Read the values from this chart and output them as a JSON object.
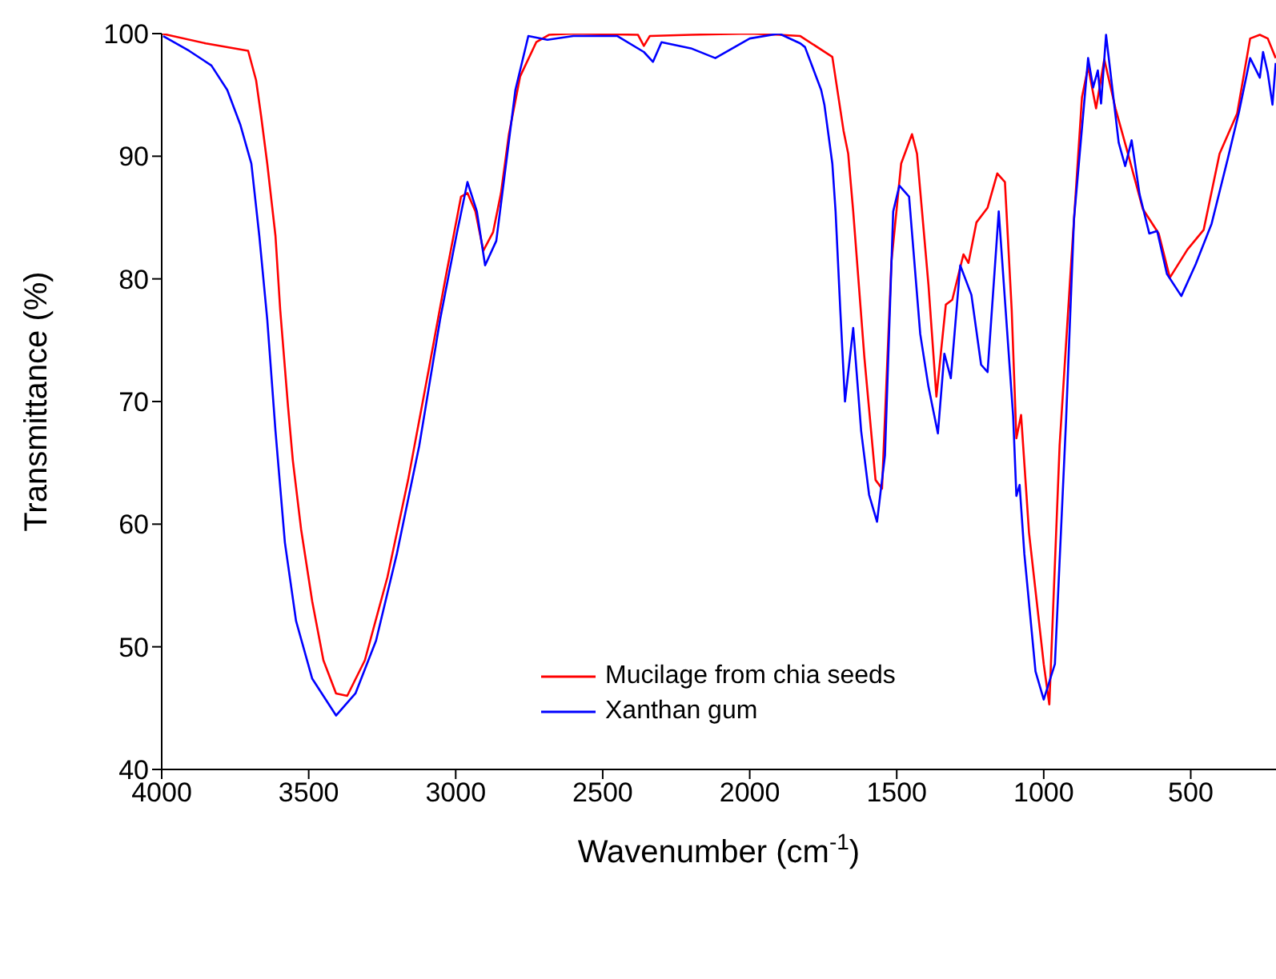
{
  "chart_data": {
    "type": "line",
    "xlabel": "Wavenumber (cm$^{-1}$)",
    "ylabel": "Transmittance (%)",
    "xlim": [
      4000,
      210
    ],
    "xticks": [
      4000,
      3500,
      3000,
      2500,
      2000,
      1500,
      1000,
      500
    ],
    "ylim": [
      40,
      100
    ],
    "yticks": [
      40,
      50,
      60,
      70,
      80,
      90,
      100
    ],
    "grid": false,
    "legend": "bottom",
    "marker": "none",
    "line_style": "solid",
    "series": [
      {
        "name": "Mucilage from chia seeds",
        "color": "#ff0000",
        "x": [
          4000,
          3850,
          3706,
          3679,
          3662,
          3641,
          3613,
          3597,
          3570,
          3554,
          3526,
          3488,
          3450,
          3407,
          3369,
          3309,
          3232,
          3162,
          3091,
          3036,
          2982,
          2960,
          2933,
          2906,
          2873,
          2846,
          2819,
          2781,
          2726,
          2683,
          2600,
          2380,
          2360,
          2340,
          2200,
          2000,
          1900,
          1828,
          1719,
          1681,
          1665,
          1648,
          1610,
          1572,
          1550,
          1518,
          1485,
          1448,
          1431,
          1392,
          1365,
          1333,
          1311,
          1273,
          1256,
          1229,
          1191,
          1158,
          1132,
          1109,
          1093,
          1077,
          1050,
          1000,
          981,
          946,
          908,
          870,
          849,
          822,
          794,
          756,
          718,
          663,
          609,
          571,
          511,
          456,
          402,
          342,
          298,
          265,
          238,
          211
        ],
        "values": [
          100,
          99.2,
          98.6,
          96.2,
          93.3,
          89.4,
          83.5,
          77.5,
          69.5,
          65.2,
          59.6,
          53.7,
          48.9,
          46.2,
          46,
          48.9,
          55.7,
          63.6,
          72.7,
          79.9,
          86.7,
          87,
          85.5,
          82.3,
          83.8,
          87,
          91.8,
          96.5,
          99.3,
          99.9,
          100,
          99.9,
          99,
          99.8,
          99.9,
          100,
          99.9,
          99.8,
          98.1,
          92.1,
          90.2,
          85.5,
          73.6,
          63.6,
          62.9,
          81.4,
          89.4,
          91.8,
          90.2,
          79.5,
          70.4,
          77.9,
          78.3,
          82,
          81.3,
          84.6,
          85.8,
          88.6,
          87.9,
          77.5,
          67,
          68.9,
          59.3,
          48.6,
          45.3,
          66.4,
          80.8,
          94.8,
          97.3,
          93.9,
          97.9,
          93.9,
          90.6,
          85.7,
          83.7,
          80.1,
          82.4,
          84,
          90.2,
          93.5,
          99.6,
          99.9,
          99.6,
          98
        ]
      },
      {
        "name": "Xanthan gum",
        "color": "#0000ff",
        "x": [
          3995,
          3907,
          3831,
          3777,
          3733,
          3695,
          3668,
          3641,
          3613,
          3581,
          3543,
          3488,
          3407,
          3341,
          3271,
          3200,
          3124,
          3053,
          2998,
          2960,
          2928,
          2900,
          2862,
          2835,
          2797,
          2753,
          2688,
          2600,
          2450,
          2360,
          2329,
          2300,
          2200,
          2117,
          2000,
          1900,
          1828,
          1812,
          1757,
          1746,
          1719,
          1708,
          1692,
          1676,
          1648,
          1621,
          1594,
          1567,
          1540,
          1512,
          1491,
          1458,
          1420,
          1392,
          1360,
          1338,
          1316,
          1284,
          1246,
          1213,
          1191,
          1153,
          1132,
          1104,
          1093,
          1082,
          1066,
          1028,
          1000,
          962,
          924,
          897,
          849,
          832,
          816,
          805,
          788,
          745,
          723,
          701,
          674,
          641,
          614,
          581,
          532,
          483,
          429,
          374,
          336,
          298,
          265,
          254,
          238,
          222,
          211
        ],
        "values": [
          99.8,
          98.6,
          97.4,
          95.4,
          92.6,
          89.4,
          83.5,
          76.7,
          67.6,
          58.5,
          52.1,
          47.4,
          44.4,
          46.2,
          50.5,
          57.6,
          66.4,
          76.7,
          83.5,
          87.9,
          85.5,
          81.1,
          83.1,
          88.2,
          95.4,
          99.8,
          99.5,
          99.8,
          99.8,
          98.5,
          97.7,
          99.3,
          98.8,
          98,
          99.6,
          100,
          99.2,
          98.9,
          95.4,
          94.2,
          89.4,
          85.5,
          77.5,
          70,
          76,
          67.6,
          62.4,
          60.2,
          65.6,
          85.5,
          87.6,
          86.7,
          75.5,
          71.2,
          67.4,
          73.9,
          71.9,
          81.1,
          78.7,
          73,
          72.4,
          85.5,
          78.3,
          68.8,
          62.3,
          63.2,
          57.6,
          48,
          45.7,
          48.6,
          68.5,
          84.9,
          98,
          95.6,
          97,
          94.3,
          99.9,
          91.1,
          89.2,
          91.3,
          86.9,
          83.7,
          83.9,
          80.4,
          78.6,
          81.2,
          84.5,
          89.8,
          93.6,
          98,
          96.4,
          98.5,
          96.8,
          94.2,
          97.6
        ]
      }
    ]
  }
}
